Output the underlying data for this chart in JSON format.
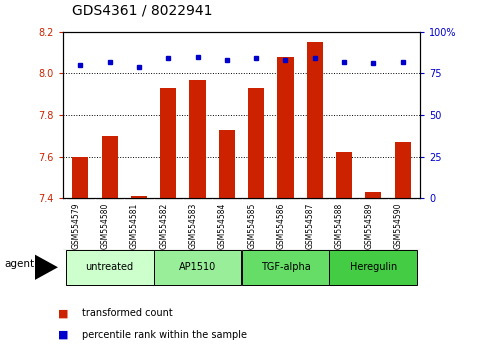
{
  "title": "GDS4361 / 8022941",
  "samples": [
    "GSM554579",
    "GSM554580",
    "GSM554581",
    "GSM554582",
    "GSM554583",
    "GSM554584",
    "GSM554585",
    "GSM554586",
    "GSM554587",
    "GSM554588",
    "GSM554589",
    "GSM554590"
  ],
  "transformed_counts": [
    7.6,
    7.7,
    7.41,
    7.93,
    7.97,
    7.73,
    7.93,
    8.08,
    8.15,
    7.62,
    7.43,
    7.67
  ],
  "percentile_ranks": [
    80,
    82,
    79,
    84,
    85,
    83,
    84,
    83,
    84,
    82,
    81,
    82
  ],
  "ylim_left": [
    7.4,
    8.2
  ],
  "ylim_right": [
    0,
    100
  ],
  "yticks_left": [
    7.4,
    7.6,
    7.8,
    8.0,
    8.2
  ],
  "yticks_right": [
    0,
    25,
    50,
    75,
    100
  ],
  "ytick_labels_right": [
    "0",
    "25",
    "50",
    "75",
    "100%"
  ],
  "groups": [
    {
      "label": "untreated",
      "indices": [
        0,
        1,
        2
      ],
      "color": "#ccffcc"
    },
    {
      "label": "AP1510",
      "indices": [
        3,
        4,
        5
      ],
      "color": "#99ee99"
    },
    {
      "label": "TGF-alpha",
      "indices": [
        6,
        7,
        8
      ],
      "color": "#66dd66"
    },
    {
      "label": "Heregulin",
      "indices": [
        9,
        10,
        11
      ],
      "color": "#44cc44"
    }
  ],
  "bar_color": "#cc2200",
  "dot_color": "#0000cc",
  "bar_bottom": 7.4,
  "agent_label": "agent",
  "legend_tc": "transformed count",
  "legend_pr": "percentile rank within the sample",
  "bg_color": "#ffffff",
  "tick_area_color": "#cccccc",
  "tick_fontsize": 7,
  "label_fontsize": 5.5,
  "title_fontsize": 10,
  "group_fontsize": 7
}
